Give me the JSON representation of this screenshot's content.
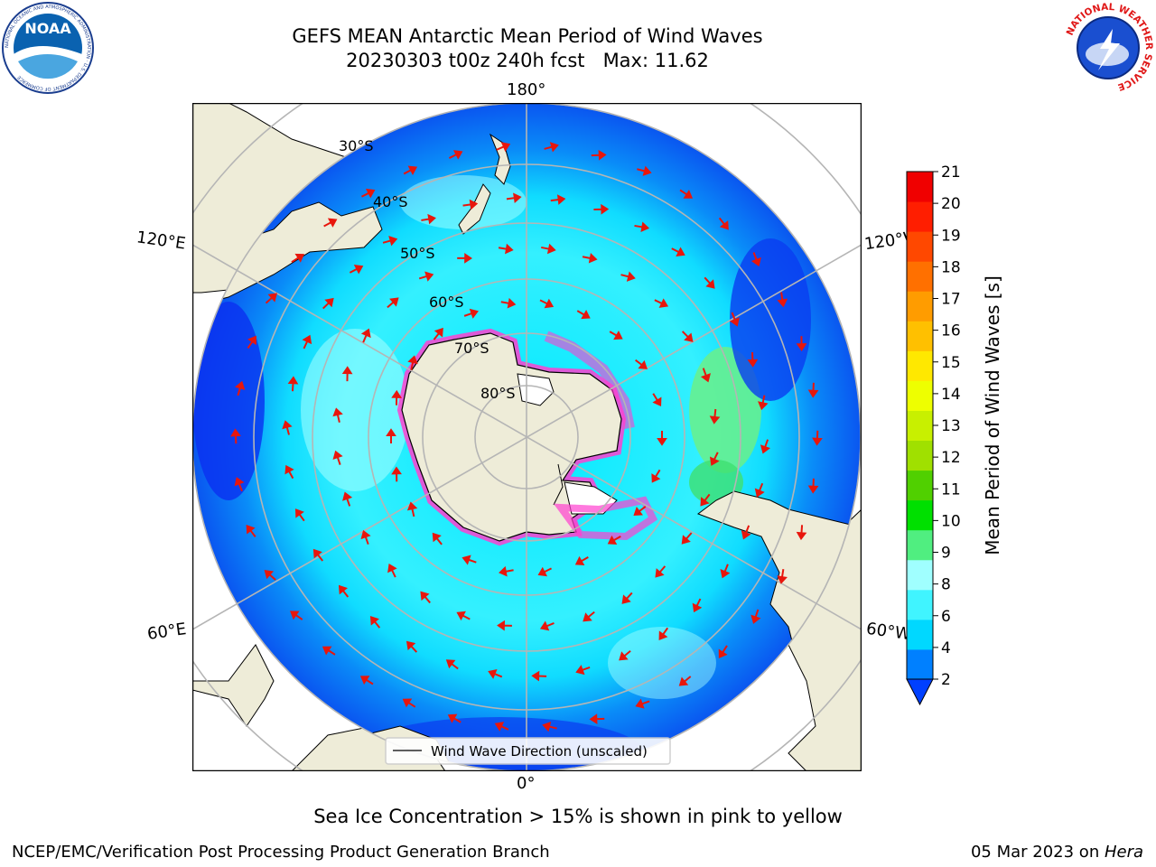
{
  "title": {
    "line1": "GEFS MEAN Antarctic Mean Period of Wind Waves",
    "line2": "20230303 t00z 240h fcst   Max: 11.62"
  },
  "logos": {
    "left": {
      "icon": "noaa-logo-icon",
      "text": "NOAA",
      "ring_text": "NATIONAL OCEANIC AND ATMOSPHERIC ADMINISTRATION · U.S. DEPARTMENT OF COMMERCE"
    },
    "right": {
      "icon": "nws-logo-icon",
      "ring_text": "NATIONAL WEATHER SERVICE"
    }
  },
  "map": {
    "projection": "south-polar-stereographic",
    "longitude_labels": {
      "top": "180°",
      "bottom": "0°",
      "left_upper": "120°E",
      "left_lower": "60°E",
      "right_upper": "120°W",
      "right_lower": "60°W"
    },
    "latitude_labels": [
      "30°S",
      "40°S",
      "50°S",
      "60°S",
      "70°S",
      "80°S"
    ],
    "legend_label": "Wind Wave Direction (unscaled)",
    "colors": {
      "land": "#eeecd8",
      "ice_shelf": "#ffffff",
      "sea_ice_edge": "#ff33cc",
      "arrows": "#e8160c",
      "grid": "#b5b5b5"
    }
  },
  "colorbar": {
    "label": "Mean Period of Wind Waves [s]",
    "ticks": [
      "2",
      "4",
      "6",
      "8",
      "9",
      "10",
      "11",
      "12",
      "13",
      "14",
      "15",
      "16",
      "17",
      "18",
      "19",
      "20",
      "21"
    ],
    "colors": [
      "#0040ff",
      "#0080ff",
      "#00d8ff",
      "#40f4ff",
      "#a0ffff",
      "#50ee80",
      "#00e000",
      "#50d000",
      "#a0e000",
      "#c8f000",
      "#eeff00",
      "#ffe800",
      "#ffc000",
      "#ff9c00",
      "#ff7000",
      "#ff4800",
      "#ff1e00",
      "#f00000"
    ]
  },
  "footer": {
    "ice_note": "Sea Ice Concentration > 15% is shown in pink to yellow",
    "branch": "NCEP/EMC/Verification Post Processing Product Generation Branch",
    "date": "05 Mar 2023 on ",
    "host": "Hera"
  }
}
